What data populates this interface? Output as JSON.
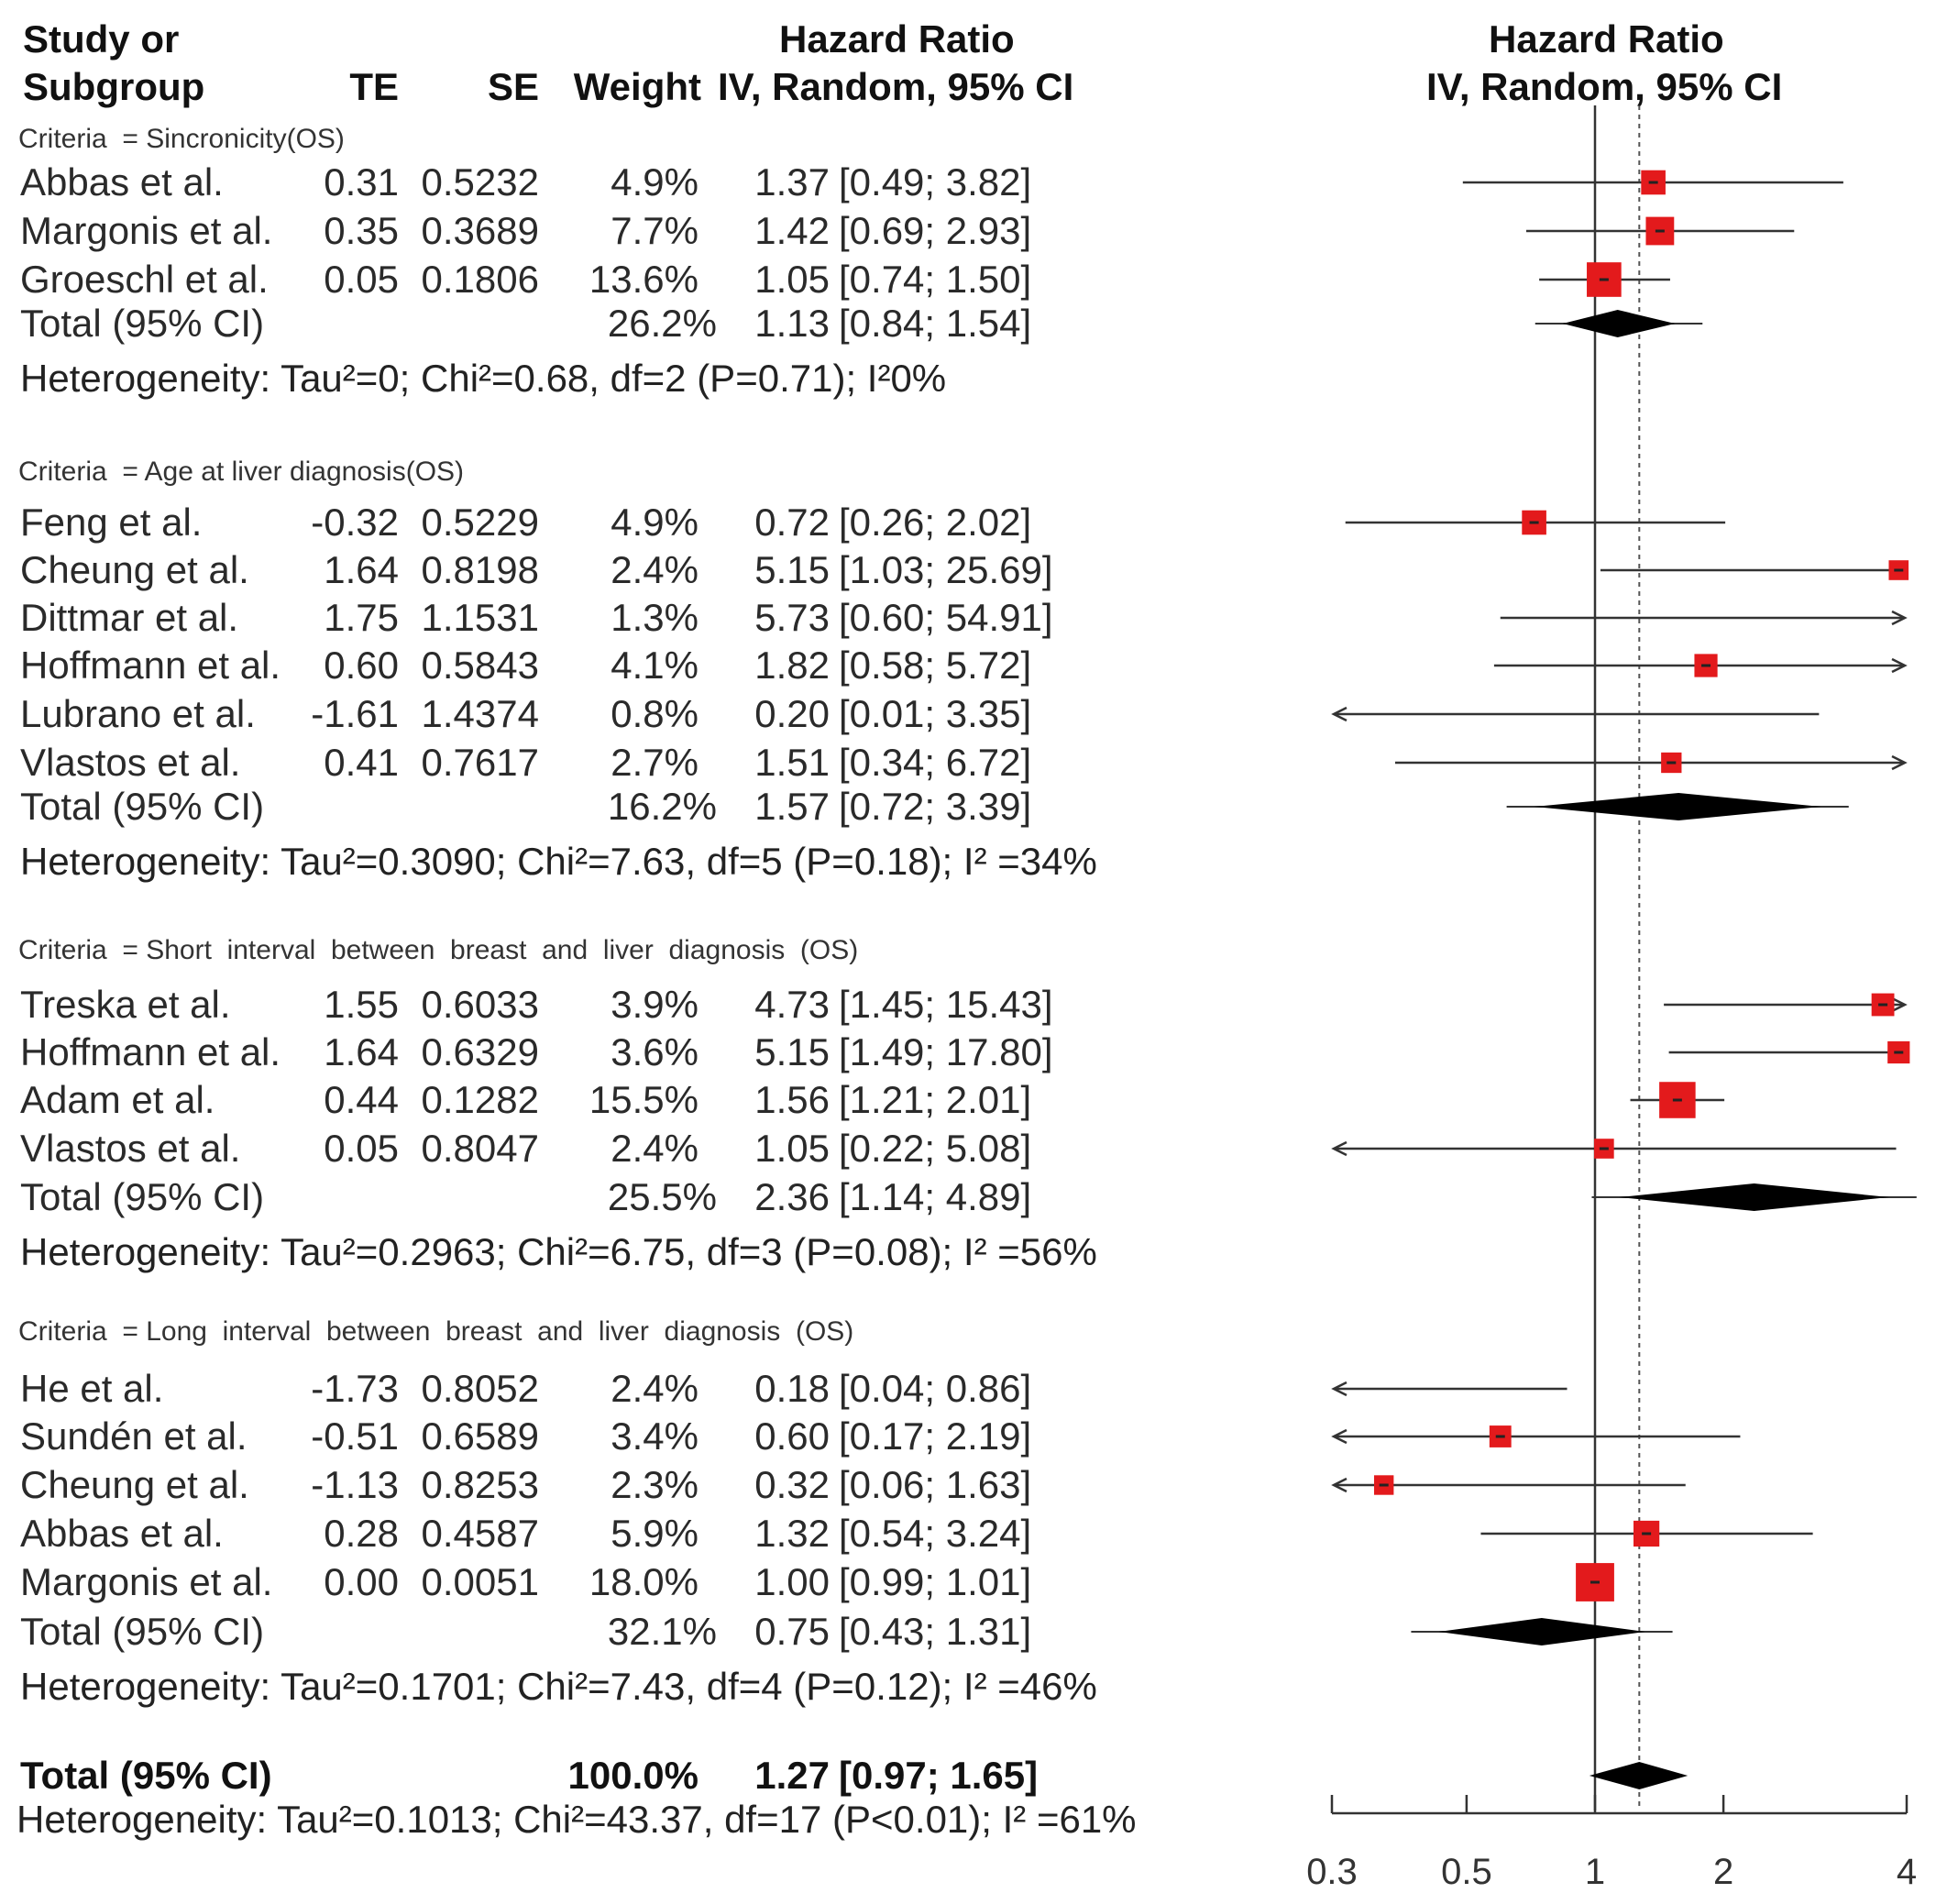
{
  "headers": {
    "study_line1": "Study or",
    "study_line2": "Subgroup",
    "te": "TE",
    "se": "SE",
    "weight": "Weight",
    "hr_line1": "Hazard Ratio",
    "hr_line2": "IV, Random, 95% CI",
    "plot_line1": "Hazard Ratio",
    "plot_line2": "IV, Random, 95% CI"
  },
  "chart_data": {
    "type": "forest",
    "title": "Hazard Ratio IV, Random, 95% CI",
    "x_scale": "log",
    "xlim": [
      0.3,
      4
    ],
    "x_ticks": [
      "0.3",
      "0.5",
      "1",
      "2",
      "4"
    ],
    "null_line": 1,
    "overall_line": 1.27,
    "subgroups": [
      {
        "criteria": "Criteria  = Sincronicity(OS)",
        "studies": [
          {
            "name": "Abbas et al.",
            "te": "0.31",
            "se": "0.5232",
            "weight": "4.9%",
            "hr": "1.37",
            "lo": "0.49",
            "hi": "3.82",
            "hr_v": 1.37,
            "lo_v": 0.49,
            "hi_v": 3.82,
            "w_v": 4.9
          },
          {
            "name": "Margonis et al.",
            "te": "0.35",
            "se": "0.3689",
            "weight": "7.7%",
            "hr": "1.42",
            "lo": "0.69",
            "hi": "2.93",
            "hr_v": 1.42,
            "lo_v": 0.69,
            "hi_v": 2.93,
            "w_v": 7.7
          },
          {
            "name": "Groeschl et al.",
            "te": "0.05",
            "se": "0.1806",
            "weight": "13.6%",
            "hr": "1.05",
            "lo": "0.74",
            "hi": "1.50",
            "hr_v": 1.05,
            "lo_v": 0.74,
            "hi_v": 1.5,
            "w_v": 13.6
          }
        ],
        "total": {
          "label": "Total (95% CI)",
          "weight": "26.2%",
          "hr": "1.13",
          "lo": "0.84",
          "hi": "1.54",
          "hr_v": 1.13,
          "lo_v": 0.84,
          "hi_v": 1.54
        },
        "heterogeneity": "Heterogeneity: Tau²=0; Chi²=0.68,     df=2 (P=0.71); I²0%"
      },
      {
        "criteria": "Criteria  = Age at liver diagnosis(OS)",
        "studies": [
          {
            "name": "Feng et al.",
            "te": "-0.32",
            "se": "0.5229",
            "weight": "4.9%",
            "hr": "0.72",
            "lo": "0.26",
            "hi": "2.02",
            "hr_v": 0.72,
            "lo_v": 0.26,
            "hi_v": 2.02,
            "w_v": 4.9
          },
          {
            "name": "Cheung et al.",
            "te": "1.64",
            "se": "0.8198",
            "weight": "2.4%",
            "hr": "5.15",
            "lo": "1.03",
            "hi": "25.69",
            "hr_v": 5.15,
            "lo_v": 1.03,
            "hi_v": 25.69,
            "w_v": 2.4
          },
          {
            "name": "Dittmar et al.",
            "te": "1.75",
            "se": "1.1531",
            "weight": "1.3%",
            "hr": "5.73",
            "lo": "0.60",
            "hi": "54.91",
            "hr_v": 5.73,
            "lo_v": 0.6,
            "hi_v": 54.91,
            "w_v": 1.3
          },
          {
            "name": "Hoffmann et al.",
            "te": "0.60",
            "se": "0.5843",
            "weight": "4.1%",
            "hr": "1.82",
            "lo": "0.58",
            "hi": "5.72",
            "hr_v": 1.82,
            "lo_v": 0.58,
            "hi_v": 5.72,
            "w_v": 4.1
          },
          {
            "name": "Lubrano et al.",
            "te": "-1.61",
            "se": "1.4374",
            "weight": "0.8%",
            "hr": "0.20",
            "lo": "0.01",
            "hi": "3.35",
            "hr_v": 0.2,
            "lo_v": 0.01,
            "hi_v": 3.35,
            "w_v": 0.8
          },
          {
            "name": "Vlastos et al.",
            "te": "0.41",
            "se": "0.7617",
            "weight": "2.7%",
            "hr": "1.51",
            "lo": "0.34",
            "hi": "6.72",
            "hr_v": 1.51,
            "lo_v": 0.34,
            "hi_v": 6.72,
            "w_v": 2.7
          }
        ],
        "total": {
          "label": "Total (95% CI)",
          "weight": "16.2%",
          "hr": "1.57",
          "lo": "0.72",
          "hi": "3.39",
          "hr_v": 1.57,
          "lo_v": 0.72,
          "hi_v": 3.39
        },
        "heterogeneity": "Heterogeneity: Tau²=0.3090; Chi²=7.63, df=5 (P=0.18); I² =34%"
      },
      {
        "criteria": "Criteria  = Short  interval  between  breast  and  liver  diagnosis  (OS)",
        "studies": [
          {
            "name": "Treska et al.",
            "te": "1.55",
            "se": "0.6033",
            "weight": "3.9%",
            "hr": "4.73",
            "lo": "1.45",
            "hi": "15.43",
            "hr_v": 4.73,
            "lo_v": 1.45,
            "hi_v": 15.43,
            "w_v": 3.9
          },
          {
            "name": "Hoffmann et al.",
            "te": "1.64",
            "se": "0.6329",
            "weight": "3.6%",
            "hr": "5.15",
            "lo": "1.49",
            "hi": "17.80",
            "hr_v": 5.15,
            "lo_v": 1.49,
            "hi_v": 17.8,
            "w_v": 3.6
          },
          {
            "name": "Adam et al.",
            "te": "0.44",
            "se": "0.1282",
            "weight": "15.5%",
            "hr": "1.56",
            "lo": "1.21",
            "hi": "2.01",
            "hr_v": 1.56,
            "lo_v": 1.21,
            "hi_v": 2.01,
            "w_v": 15.5
          },
          {
            "name": "Vlastos et al.",
            "te": "0.05",
            "se": "0.8047",
            "weight": "2.4%",
            "hr": "1.05",
            "lo": "0.22",
            "hi": "5.08",
            "hr_v": 1.05,
            "lo_v": 0.22,
            "hi_v": 5.08,
            "w_v": 2.4
          }
        ],
        "total": {
          "label": "Total (95% CI)",
          "weight": "25.5%",
          "hr": "2.36",
          "lo": "1.14",
          "hi": "4.89",
          "hr_v": 2.36,
          "lo_v": 1.14,
          "hi_v": 4.89
        },
        "heterogeneity": "Heterogeneity: Tau²=0.2963; Chi²=6.75, df=3 (P=0.08); I² =56%"
      },
      {
        "criteria": "Criteria  = Long  interval  between  breast  and  liver  diagnosis  (OS)",
        "studies": [
          {
            "name": "He et al.",
            "te": "-1.73",
            "se": "0.8052",
            "weight": "2.4%",
            "hr": "0.18",
            "lo": "0.04",
            "hi": "0.86",
            "hr_v": 0.18,
            "lo_v": 0.04,
            "hi_v": 0.86,
            "w_v": 2.4
          },
          {
            "name": "Sundén et al.",
            "te": "-0.51",
            "se": "0.6589",
            "weight": "3.4%",
            "hr": "0.60",
            "lo": "0.17",
            "hi": "2.19",
            "hr_v": 0.6,
            "lo_v": 0.17,
            "hi_v": 2.19,
            "w_v": 3.4
          },
          {
            "name": "Cheung et al.",
            "te": "-1.13",
            "se": "0.8253",
            "weight": "2.3%",
            "hr": "0.32",
            "lo": "0.06",
            "hi": "1.63",
            "hr_v": 0.32,
            "lo_v": 0.06,
            "hi_v": 1.63,
            "w_v": 2.3
          },
          {
            "name": "Abbas et al.",
            "te": "0.28",
            "se": "0.4587",
            "weight": "5.9%",
            "hr": "1.32",
            "lo": "0.54",
            "hi": "3.24",
            "hr_v": 1.32,
            "lo_v": 0.54,
            "hi_v": 3.24,
            "w_v": 5.9
          },
          {
            "name": "Margonis et al.",
            "te": "0.00",
            "se": "0.0051",
            "weight": "18.0%",
            "hr": "1.00",
            "lo": "0.99",
            "hi": "1.01",
            "hr_v": 1.0,
            "lo_v": 0.99,
            "hi_v": 1.01,
            "w_v": 18.0
          }
        ],
        "total": {
          "label": "Total (95% CI)",
          "weight": "32.1%",
          "hr": "0.75",
          "lo": "0.43",
          "hi": "1.31",
          "hr_v": 0.75,
          "lo_v": 0.43,
          "hi_v": 1.31
        },
        "heterogeneity": "Heterogeneity: Tau²=0.1701; Chi²=7.43, df=4 (P=0.12); I² =46%"
      }
    ],
    "overall": {
      "label": "Total (95% CI)",
      "weight": "100.0%",
      "hr": "1.27",
      "lo": "0.97",
      "hi": "1.65",
      "hr_v": 1.27,
      "lo_v": 0.97,
      "hi_v": 1.65,
      "heterogeneity": "Heterogeneity: Tau²=0.1013; Chi²=43.37, df=17 (P<0.01); I² =61%"
    }
  },
  "colors": {
    "square": "#e31a1c",
    "diamond": "#000000",
    "line": "#333333"
  }
}
